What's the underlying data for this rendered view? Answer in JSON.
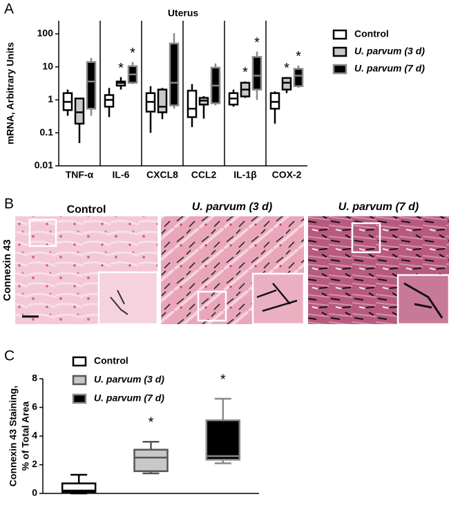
{
  "chart_data": [
    {
      "type": "box",
      "panel_label": "A",
      "title": "Uterus",
      "ylabel": "mRNA, Arbitrary Units",
      "log_scale": true,
      "categories": [
        "TNF-α",
        "IL-6",
        "CXCL8",
        "CCL2",
        "IL-1β",
        "COX-2"
      ],
      "ylim": [
        0.01,
        250
      ],
      "yticks": [
        0.01,
        0.1,
        1,
        10,
        100
      ],
      "separators": true,
      "whisker_caps": false,
      "legend": "right",
      "series": [
        {
          "name": "Control",
          "color": "#ffffff",
          "edge": "#000000",
          "values": [
            [
              0.33,
              0.49,
              0.87,
              1.6,
              2.05
            ],
            [
              0.3,
              0.62,
              1,
              1.4,
              2.3
            ],
            [
              0.1,
              0.44,
              0.87,
              1.6,
              2.6
            ],
            [
              0.15,
              0.3,
              0.54,
              1.9,
              3
            ],
            [
              0.62,
              0.72,
              1.1,
              1.6,
              2.05
            ],
            [
              0.19,
              0.54,
              0.87,
              1.6,
              1.8
            ]
          ],
          "value_labels": [
            null,
            null,
            null,
            null,
            null,
            null
          ]
        },
        {
          "name": "U. parvum (3 d)",
          "color": "#c8c8c8",
          "edge": "#000000",
          "values": [
            [
              0.049,
              0.19,
              0.42,
              1.1,
              1.1
            ],
            [
              2.05,
              2.7,
              3.3,
              3.6,
              4.9
            ],
            [
              0.26,
              0.42,
              0.62,
              2.05,
              2.3
            ],
            [
              0.27,
              0.72,
              0.95,
              1.15,
              1.3
            ],
            [
              1.15,
              1.27,
              2.05,
              3.3,
              3.6
            ],
            [
              1.6,
              2.05,
              3.3,
              4.6,
              4.9
            ]
          ],
          "value_labels": [
            null,
            "*",
            null,
            null,
            "*",
            "*"
          ]
        },
        {
          "name": "U. parvum (7 d)",
          "color": "#000000",
          "edge": "#888888",
          "values": [
            [
              0.33,
              0.54,
              3.6,
              14,
              18.7
            ],
            [
              3,
              3.3,
              5.9,
              10.5,
              14
            ],
            [
              0.54,
              0.68,
              3.3,
              51,
              105
            ],
            [
              0.68,
              0.79,
              2.7,
              9.5,
              12.7
            ],
            [
              1,
              2.05,
              5.4,
              20,
              29
            ],
            [
              2.3,
              2.6,
              5.4,
              8.7,
              11
            ]
          ],
          "value_labels": [
            null,
            "*",
            null,
            null,
            "*",
            "*"
          ]
        }
      ]
    },
    {
      "type": "box",
      "panel_label": "C",
      "ylabel": [
        "Connexin 43 Staining,",
        "% of Total Area"
      ],
      "log_scale": false,
      "ylim": [
        0,
        8
      ],
      "yticks": [
        0,
        2,
        4,
        6,
        8
      ],
      "separators": false,
      "whisker_caps": true,
      "legend": "upper left",
      "series": [
        {
          "name": "Control",
          "color": "#ffffff",
          "edge": "#000000",
          "values": [
            [
              0,
              0.1,
              0.2,
              0.7,
              1.3
            ]
          ],
          "value_labels": [
            null
          ]
        },
        {
          "name": "U. parvum (3 d)",
          "color": "#c8c8c8",
          "edge": "#555555",
          "values": [
            [
              1.4,
              1.55,
              2.5,
              3.05,
              3.6
            ]
          ],
          "value_labels": [
            "*"
          ]
        },
        {
          "name": "U. parvum (7 d)",
          "color": "#000000",
          "edge": "#888888",
          "values": [
            [
              2.1,
              2.35,
              2.6,
              5.1,
              6.6
            ]
          ],
          "value_labels": [
            "*"
          ]
        }
      ]
    }
  ],
  "image_panel": {
    "panel_label": "B",
    "row_label": "Connexin 43",
    "titles": [
      "Control",
      "U. parvum (3 d)",
      "U. parvum (7 d)"
    ]
  }
}
